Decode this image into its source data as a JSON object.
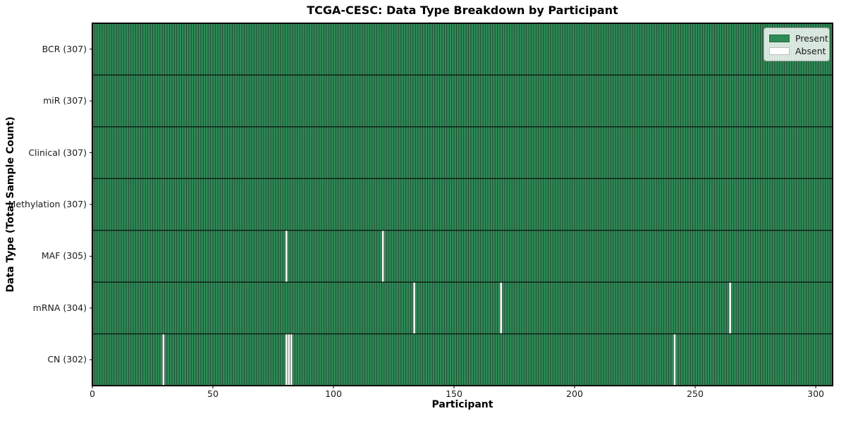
{
  "chart_data": {
    "type": "heatmap",
    "title": "TCGA-CESC: Data Type Breakdown by Participant",
    "xlabel": "Participant",
    "ylabel": "Data Type (Total Sample Count)",
    "x_range": [
      0,
      307
    ],
    "n_participants": 307,
    "xticks": [
      0,
      50,
      100,
      150,
      200,
      250,
      300
    ],
    "grid": "cell-edges",
    "legend_position": "upper right",
    "rows": [
      {
        "label": "BCR (307)",
        "data_type": "BCR",
        "present_count": 307,
        "absent_participants": []
      },
      {
        "label": "miR (307)",
        "data_type": "miR",
        "present_count": 307,
        "absent_participants": []
      },
      {
        "label": "Clinical (307)",
        "data_type": "Clinical",
        "present_count": 307,
        "absent_participants": []
      },
      {
        "label": "Methylation (307)",
        "data_type": "Methylation",
        "present_count": 307,
        "absent_participants": []
      },
      {
        "label": "MAF (305)",
        "data_type": "MAF",
        "present_count": 305,
        "absent_participants": [
          80,
          120
        ]
      },
      {
        "label": "mRNA (304)",
        "data_type": "mRNA",
        "present_count": 304,
        "absent_participants": [
          133,
          169,
          264
        ]
      },
      {
        "label": "CN (302)",
        "data_type": "CN",
        "present_count": 302,
        "absent_participants": [
          29,
          80,
          81,
          82,
          241
        ]
      }
    ],
    "legend": [
      {
        "label": "Present",
        "color": "#2e8b57"
      },
      {
        "label": "Absent",
        "color": "#ffffff"
      }
    ],
    "colors": {
      "present": "#2e8b57",
      "absent": "#ffffff",
      "cell_edge": "#223c2c",
      "row_edge": "#0b1a11",
      "border": "#000000",
      "tick": "#000000"
    }
  }
}
